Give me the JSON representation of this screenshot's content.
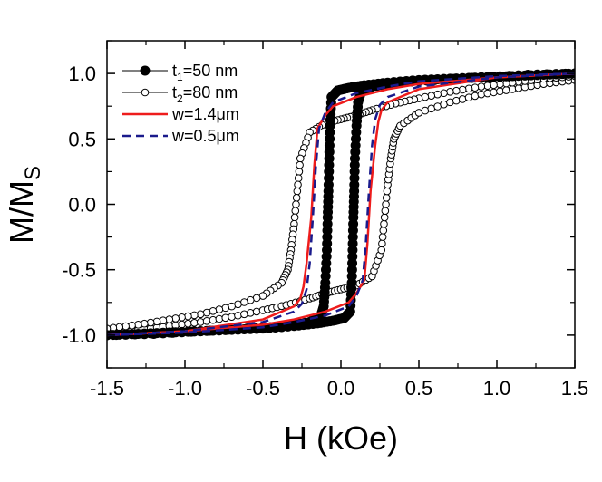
{
  "chart_data": {
    "type": "line",
    "title": "",
    "xlabel": "H (kOe)",
    "ylabel": "M/M",
    "ylabel_sub": "S",
    "xlim": [
      -1.5,
      1.5
    ],
    "ylim": [
      -1.25,
      1.25
    ],
    "xticks": [
      -1.5,
      -1.0,
      -0.5,
      0.0,
      0.5,
      1.0,
      1.5
    ],
    "xtick_labels": [
      "-1.5",
      "-1.0",
      "-0.5",
      "0.0",
      "0.5",
      "1.0",
      "1.5"
    ],
    "yticks": [
      -1.0,
      -0.5,
      0.0,
      0.5,
      1.0
    ],
    "ytick_labels": [
      "-1.0",
      "-0.5",
      "0.0",
      "0.5",
      "1.0"
    ],
    "legend_position": "top-left",
    "series": [
      {
        "name": "t1=50 nm",
        "legend_main": "t",
        "legend_sub": "1",
        "legend_rest": "=50 nm",
        "style": "filled-circle-line",
        "color": "#000000",
        "branches": [
          {
            "x": [
              -1.5,
              -1.3,
              -1.1,
              -0.9,
              -0.7,
              -0.5,
              -0.3,
              -0.15,
              -0.05,
              0.02,
              0.06,
              0.07,
              0.075,
              0.08,
              0.085,
              0.09,
              0.1,
              0.11,
              0.13,
              0.2,
              0.35,
              0.6,
              0.9,
              1.2,
              1.5
            ],
            "y": [
              -1.0,
              -0.99,
              -0.98,
              -0.97,
              -0.96,
              -0.95,
              -0.93,
              -0.91,
              -0.89,
              -0.87,
              -0.82,
              -0.6,
              -0.35,
              -0.1,
              0.1,
              0.35,
              0.6,
              0.78,
              0.86,
              0.9,
              0.93,
              0.95,
              0.97,
              0.99,
              1.0
            ]
          },
          {
            "x": [
              1.5,
              1.3,
              1.1,
              0.9,
              0.7,
              0.5,
              0.3,
              0.15,
              0.05,
              -0.02,
              -0.06,
              -0.07,
              -0.075,
              -0.08,
              -0.085,
              -0.09,
              -0.1,
              -0.11,
              -0.13,
              -0.2,
              -0.35,
              -0.6,
              -0.9,
              -1.2,
              -1.5
            ],
            "y": [
              1.0,
              0.99,
              0.98,
              0.97,
              0.96,
              0.95,
              0.93,
              0.91,
              0.89,
              0.87,
              0.82,
              0.6,
              0.35,
              0.1,
              -0.1,
              -0.35,
              -0.6,
              -0.78,
              -0.86,
              -0.9,
              -0.93,
              -0.95,
              -0.97,
              -0.99,
              -1.0
            ]
          }
        ]
      },
      {
        "name": "t2=80 nm",
        "legend_main": "t",
        "legend_sub": "2",
        "legend_rest": "=80 nm",
        "style": "open-circle-line",
        "color": "#000000",
        "branches": [
          {
            "x": [
              -1.5,
              -1.3,
              -1.1,
              -0.9,
              -0.7,
              -0.5,
              -0.35,
              -0.2,
              -0.1,
              0.0,
              0.1,
              0.2,
              0.26,
              0.28,
              0.3,
              0.32,
              0.34,
              0.38,
              0.5,
              0.7,
              0.9,
              1.1,
              1.3,
              1.5
            ],
            "y": [
              -0.98,
              -0.96,
              -0.93,
              -0.9,
              -0.86,
              -0.81,
              -0.77,
              -0.72,
              -0.68,
              -0.65,
              -0.62,
              -0.55,
              -0.35,
              -0.1,
              0.15,
              0.35,
              0.5,
              0.6,
              0.7,
              0.78,
              0.84,
              0.88,
              0.92,
              0.95
            ]
          },
          {
            "x": [
              1.5,
              1.3,
              1.1,
              0.9,
              0.7,
              0.5,
              0.35,
              0.2,
              0.1,
              0.0,
              -0.1,
              -0.2,
              -0.26,
              -0.28,
              -0.3,
              -0.32,
              -0.34,
              -0.38,
              -0.5,
              -0.7,
              -0.9,
              -1.1,
              -1.3,
              -1.5
            ],
            "y": [
              0.98,
              0.96,
              0.93,
              0.9,
              0.86,
              0.81,
              0.77,
              0.72,
              0.68,
              0.65,
              0.62,
              0.55,
              0.35,
              0.1,
              -0.15,
              -0.35,
              -0.5,
              -0.6,
              -0.7,
              -0.78,
              -0.84,
              -0.88,
              -0.92,
              -0.95
            ]
          }
        ]
      },
      {
        "name": "w=1.4μm",
        "legend_label": "w=1.4μm",
        "style": "solid-line",
        "color": "#ee1c1c",
        "branches": [
          {
            "x": [
              -1.5,
              -1.0,
              -0.5,
              -0.3,
              -0.1,
              0.05,
              0.1,
              0.15,
              0.17,
              0.19,
              0.22,
              0.24,
              0.26,
              0.3,
              0.5,
              1.0,
              1.5
            ],
            "y": [
              -1.0,
              -0.97,
              -0.92,
              -0.88,
              -0.82,
              -0.75,
              -0.68,
              -0.58,
              -0.3,
              0.1,
              0.45,
              0.63,
              0.72,
              0.78,
              0.88,
              0.97,
              1.0
            ]
          },
          {
            "x": [
              1.5,
              1.0,
              0.5,
              0.3,
              0.1,
              -0.05,
              -0.1,
              -0.15,
              -0.17,
              -0.19,
              -0.22,
              -0.24,
              -0.26,
              -0.3,
              -0.5,
              -1.0,
              -1.5
            ],
            "y": [
              1.0,
              0.97,
              0.92,
              0.88,
              0.82,
              0.75,
              0.68,
              0.58,
              0.3,
              -0.1,
              -0.45,
              -0.63,
              -0.72,
              -0.78,
              -0.88,
              -0.97,
              -1.0
            ]
          }
        ]
      },
      {
        "name": "w=0.5μm",
        "legend_label": "w=0.5μm",
        "style": "dashed-line",
        "color": "#1a1a8c",
        "branches": [
          {
            "x": [
              -1.5,
              -1.0,
              -0.5,
              -0.3,
              -0.1,
              0.05,
              0.1,
              0.14,
              0.16,
              0.18,
              0.2,
              0.22,
              0.25,
              0.3,
              0.5,
              1.0,
              1.5
            ],
            "y": [
              -1.0,
              -0.98,
              -0.94,
              -0.9,
              -0.85,
              -0.78,
              -0.7,
              -0.58,
              -0.3,
              0.1,
              0.45,
              0.65,
              0.76,
              0.82,
              0.9,
              0.97,
              1.0
            ]
          },
          {
            "x": [
              1.5,
              1.0,
              0.5,
              0.3,
              0.1,
              -0.05,
              -0.1,
              -0.14,
              -0.16,
              -0.18,
              -0.2,
              -0.22,
              -0.25,
              -0.3,
              -0.5,
              -1.0,
              -1.5
            ],
            "y": [
              1.0,
              0.98,
              0.94,
              0.9,
              0.85,
              0.78,
              0.7,
              0.58,
              0.3,
              -0.1,
              -0.45,
              -0.65,
              -0.76,
              -0.82,
              -0.9,
              -0.97,
              -1.0
            ]
          }
        ]
      }
    ]
  }
}
